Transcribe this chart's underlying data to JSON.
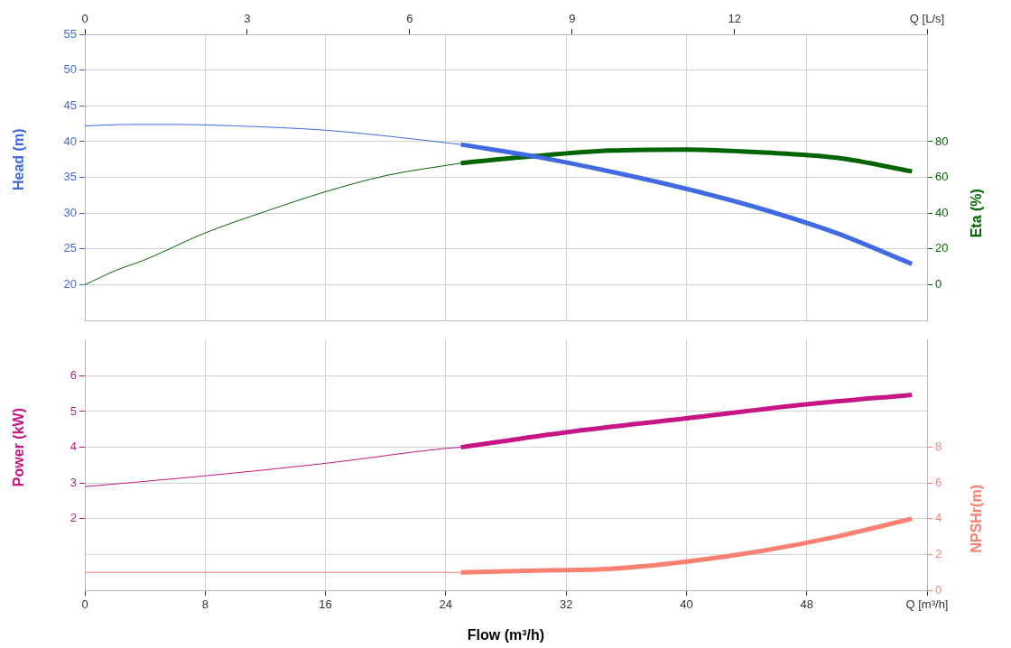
{
  "chart_data": [
    {
      "type": "line",
      "ylabel": "Head (m)",
      "y2label": "Eta (%)",
      "xlim": [
        0,
        56
      ],
      "xticks": [
        0,
        8,
        16,
        24,
        32,
        40,
        48
      ],
      "x2lim": [
        0,
        15.556
      ],
      "x2ticks": [
        0,
        3,
        6,
        9,
        12,
        {
          "value": 15.556,
          "label": "Q [L/s]"
        }
      ],
      "ylim": [
        15,
        55
      ],
      "yticks": [
        20,
        25,
        30,
        35,
        40,
        45,
        50,
        55
      ],
      "y2lim": [
        -20,
        140
      ],
      "y2ticks": [
        0,
        20,
        40,
        60,
        80
      ],
      "grid": true,
      "marker": "none",
      "tick_labels": "y",
      "series": [
        {
          "color": "#4169e1",
          "x": [
            0,
            3,
            6,
            10,
            16,
            20,
            25
          ],
          "values": [
            42.2,
            42.4,
            42.4,
            42.2,
            41.6,
            40.8,
            39.6
          ]
        },
        {
          "color": "#4169e1",
          "x": [
            25,
            30,
            35,
            40,
            45,
            50,
            55
          ],
          "values": [
            39.6,
            37.9,
            35.8,
            33.4,
            30.6,
            27.2,
            22.9
          ]
        },
        {
          "axis": "y2",
          "color": "#006400",
          "x": [
            0,
            2,
            4,
            8,
            12,
            16,
            20,
            25
          ],
          "values": [
            0,
            7.8,
            14,
            29,
            41,
            52,
            61,
            68
          ]
        },
        {
          "axis": "y2",
          "color": "#006400",
          "x": [
            25,
            30,
            35,
            40,
            45,
            50,
            55
          ],
          "values": [
            68,
            72,
            75,
            75.6,
            74,
            71,
            63.4
          ]
        }
      ]
    },
    {
      "type": "line",
      "xlabel": "Flow (m³/h)",
      "ylabel": "Power (kW)",
      "y2label": "NPSHr(m)",
      "xlim": [
        0,
        56
      ],
      "xticks": [
        0,
        8,
        16,
        24,
        32,
        40,
        48,
        {
          "value": 56,
          "label": "Q [m³/h]"
        }
      ],
      "ylim": [
        0,
        7
      ],
      "yticks": [
        {
          "value": 1,
          "label": null
        },
        2,
        3,
        4,
        5,
        6
      ],
      "y2lim": [
        0,
        14
      ],
      "y2ticks": [
        0,
        2,
        4,
        6,
        8
      ],
      "grid": true,
      "marker": "none",
      "series": [
        {
          "color": "#c71585",
          "x": [
            0,
            8,
            16,
            24,
            25
          ],
          "values": [
            2.9,
            3.2,
            3.55,
            3.97,
            4.0
          ]
        },
        {
          "color": "#c71585",
          "x": [
            25,
            32,
            40,
            48,
            55
          ],
          "values": [
            4.0,
            4.42,
            4.81,
            5.2,
            5.47
          ]
        },
        {
          "axis": "y2",
          "color": "#fa8072",
          "x": [
            0,
            25
          ],
          "values": [
            1.0,
            1.0
          ]
        },
        {
          "axis": "y2",
          "color": "#fa8072",
          "x": [
            25,
            30,
            35,
            40,
            45,
            50,
            55
          ],
          "values": [
            1.0,
            1.1,
            1.2,
            1.6,
            2.2,
            3.0,
            4.0
          ]
        }
      ]
    }
  ]
}
